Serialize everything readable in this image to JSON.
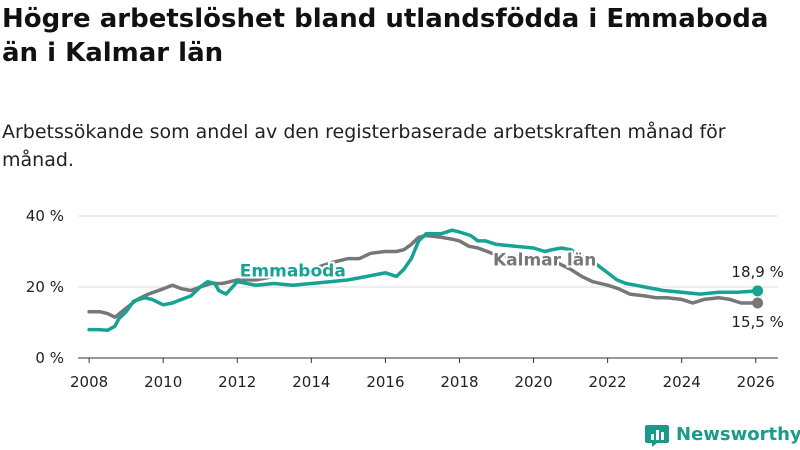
{
  "header": {
    "title": "Högre arbetslöshet bland utlandsfödda i Emmaboda än i Kalmar län",
    "subtitle": "Arbetssökande som andel av den registerbaserade arbetskraften månad för månad."
  },
  "brand": {
    "name": "Newsworthy",
    "icon": "newsworthy-logo-icon"
  },
  "colors": {
    "emmaboda": "#17a393",
    "kalmar": "#777777",
    "grid": "#dddddd",
    "axis": "#333333",
    "text": "#222222"
  },
  "chart_data": {
    "type": "line",
    "title": "Högre arbetslöshet bland utlandsfödda i Emmaboda än i Kalmar län",
    "xlabel": "",
    "ylabel": "",
    "xlim": [
      2007.7,
      2026.6
    ],
    "ylim": [
      0,
      40
    ],
    "grid": true,
    "x_ticks": [
      2008,
      2010,
      2012,
      2014,
      2016,
      2018,
      2020,
      2022,
      2024,
      2026
    ],
    "x_tick_labels": [
      "2008",
      "2010",
      "2012",
      "2014",
      "2016",
      "2018",
      "2020",
      "2022",
      "2024",
      "2026"
    ],
    "y_ticks": [
      0,
      20,
      40
    ],
    "y_tick_labels": [
      "0 %",
      "20 %",
      "40 %"
    ],
    "series": [
      {
        "name": "Emmaboda",
        "label": "Emmaboda",
        "end_label": "18,9 %",
        "last_value": 18.9,
        "points": [
          [
            2008.0,
            8
          ],
          [
            2008.25,
            8
          ],
          [
            2008.5,
            7.8
          ],
          [
            2008.7,
            9
          ],
          [
            2008.8,
            11
          ],
          [
            2009.0,
            13
          ],
          [
            2009.2,
            16
          ],
          [
            2009.5,
            17
          ],
          [
            2009.7,
            16.5
          ],
          [
            2010.0,
            15
          ],
          [
            2010.25,
            15.5
          ],
          [
            2010.5,
            16.5
          ],
          [
            2010.75,
            17.5
          ],
          [
            2011.0,
            20
          ],
          [
            2011.2,
            21.5
          ],
          [
            2011.4,
            21
          ],
          [
            2011.5,
            19
          ],
          [
            2011.7,
            18
          ],
          [
            2012.0,
            21.5
          ],
          [
            2012.5,
            20.5
          ],
          [
            2013.0,
            21
          ],
          [
            2013.5,
            20.5
          ],
          [
            2014.0,
            21
          ],
          [
            2014.5,
            21.5
          ],
          [
            2015.0,
            22
          ],
          [
            2015.5,
            23
          ],
          [
            2016.0,
            24
          ],
          [
            2016.3,
            23
          ],
          [
            2016.5,
            25
          ],
          [
            2016.7,
            28
          ],
          [
            2016.9,
            33
          ],
          [
            2017.1,
            35
          ],
          [
            2017.5,
            35
          ],
          [
            2017.8,
            36
          ],
          [
            2018.0,
            35.5
          ],
          [
            2018.3,
            34.5
          ],
          [
            2018.5,
            33
          ],
          [
            2018.7,
            33
          ],
          [
            2019.0,
            32
          ],
          [
            2019.5,
            31.5
          ],
          [
            2020.0,
            31
          ],
          [
            2020.3,
            30
          ],
          [
            2020.5,
            30.5
          ],
          [
            2020.75,
            31
          ],
          [
            2021.0,
            30.5
          ],
          [
            2021.25,
            29
          ],
          [
            2021.5,
            27.5
          ],
          [
            2021.75,
            26
          ],
          [
            2022.0,
            24
          ],
          [
            2022.25,
            22
          ],
          [
            2022.5,
            21
          ],
          [
            2022.75,
            20.5
          ],
          [
            2023.0,
            20
          ],
          [
            2023.5,
            19
          ],
          [
            2024.0,
            18.5
          ],
          [
            2024.5,
            18
          ],
          [
            2025.0,
            18.5
          ],
          [
            2025.5,
            18.5
          ],
          [
            2026.05,
            18.9
          ]
        ]
      },
      {
        "name": "Kalmar län",
        "label": "Kalmar län",
        "end_label": "15,5 %",
        "last_value": 15.5,
        "points": [
          [
            2008.0,
            13
          ],
          [
            2008.3,
            13
          ],
          [
            2008.5,
            12.5
          ],
          [
            2008.7,
            11.5
          ],
          [
            2009.0,
            14
          ],
          [
            2009.3,
            16.5
          ],
          [
            2009.6,
            18
          ],
          [
            2010.0,
            19.5
          ],
          [
            2010.25,
            20.5
          ],
          [
            2010.5,
            19.5
          ],
          [
            2010.75,
            19
          ],
          [
            2011.0,
            20
          ],
          [
            2011.3,
            21
          ],
          [
            2011.6,
            21
          ],
          [
            2012.0,
            22
          ],
          [
            2012.5,
            22
          ],
          [
            2013.0,
            23
          ],
          [
            2013.5,
            24
          ],
          [
            2014.0,
            25
          ],
          [
            2014.3,
            26
          ],
          [
            2014.6,
            27
          ],
          [
            2015.0,
            28
          ],
          [
            2015.3,
            28
          ],
          [
            2015.6,
            29.5
          ],
          [
            2016.0,
            30
          ],
          [
            2016.3,
            30
          ],
          [
            2016.5,
            30.5
          ],
          [
            2016.7,
            32
          ],
          [
            2016.9,
            34
          ],
          [
            2017.1,
            34.5
          ],
          [
            2017.5,
            34
          ],
          [
            2017.8,
            33.5
          ],
          [
            2018.0,
            33
          ],
          [
            2018.25,
            31.5
          ],
          [
            2018.5,
            31
          ],
          [
            2018.75,
            30
          ],
          [
            2019.0,
            29
          ],
          [
            2019.5,
            28.5
          ],
          [
            2020.0,
            27.5
          ],
          [
            2020.3,
            28
          ],
          [
            2020.6,
            27
          ],
          [
            2021.0,
            25
          ],
          [
            2021.3,
            23
          ],
          [
            2021.6,
            21.5
          ],
          [
            2022.0,
            20.5
          ],
          [
            2022.3,
            19.5
          ],
          [
            2022.6,
            18
          ],
          [
            2023.0,
            17.5
          ],
          [
            2023.3,
            17
          ],
          [
            2023.6,
            17
          ],
          [
            2024.0,
            16.5
          ],
          [
            2024.3,
            15.5
          ],
          [
            2024.6,
            16.5
          ],
          [
            2025.0,
            17
          ],
          [
            2025.3,
            16.5
          ],
          [
            2025.6,
            15.5
          ],
          [
            2026.05,
            15.5
          ]
        ]
      }
    ],
    "annotations": [
      {
        "series": "Emmaboda",
        "text": "Emmaboda",
        "at": [
          2013.5,
          23
        ]
      },
      {
        "series": "Kalmar län",
        "text": "Kalmar län",
        "at": [
          2020.3,
          26
        ]
      }
    ]
  }
}
